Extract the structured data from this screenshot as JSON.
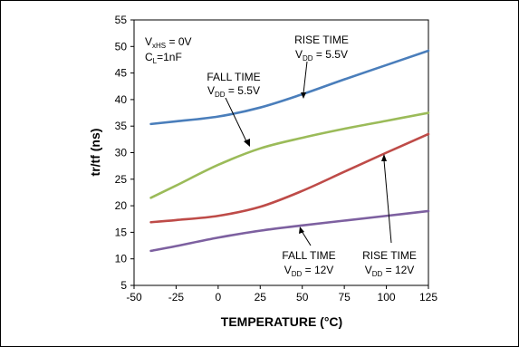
{
  "chart_data": {
    "type": "line",
    "xlabel": "TEMPERATURE (°C)",
    "ylabel": "tr/tf (ns)",
    "xlim": [
      -50,
      125
    ],
    "ylim": [
      5,
      55
    ],
    "xticks": [
      -50,
      -25,
      0,
      25,
      50,
      75,
      100,
      125
    ],
    "yticks": [
      5,
      10,
      15,
      20,
      25,
      30,
      35,
      40,
      45,
      50,
      55
    ],
    "grid": false,
    "conditions": {
      "line1_main": "V",
      "line1_sub": "xHS",
      "line1_rest": " = 0V",
      "line2_main": "C",
      "line2_sub": "L",
      "line2_rest": "=1nF"
    },
    "series": [
      {
        "name": "RISE TIME VDD = 5.5V",
        "color": "#4a7ebb",
        "x": [
          -40,
          -25,
          0,
          25,
          50,
          75,
          100,
          125
        ],
        "values": [
          35.4,
          35.9,
          36.8,
          38.5,
          41.0,
          43.8,
          46.5,
          49.2
        ]
      },
      {
        "name": "FALL TIME VDD = 5.5V",
        "color": "#9bbb59",
        "x": [
          -40,
          -25,
          0,
          25,
          50,
          75,
          100,
          125
        ],
        "values": [
          21.5,
          23.8,
          27.7,
          30.8,
          32.8,
          34.5,
          36.0,
          37.5
        ]
      },
      {
        "name": "RISE TIME VDD = 12V",
        "color": "#be4b48",
        "x": [
          -40,
          -25,
          0,
          25,
          50,
          75,
          100,
          125
        ],
        "values": [
          16.9,
          17.3,
          18.1,
          19.8,
          22.8,
          26.4,
          30.0,
          33.5
        ]
      },
      {
        "name": "FALL TIME VDD = 12V",
        "color": "#7d60a0",
        "x": [
          -40,
          -25,
          0,
          25,
          50,
          75,
          100,
          125
        ],
        "values": [
          11.5,
          12.4,
          14.0,
          15.3,
          16.3,
          17.2,
          18.1,
          19.0
        ]
      }
    ],
    "annotations": [
      {
        "line1": "RISE TIME",
        "line2_main": "V",
        "line2_sub": "DD",
        "line2_rest": " = 5.5V",
        "series": 0
      },
      {
        "line1": "FALL TIME",
        "line2_main": "V",
        "line2_sub": "DD",
        "line2_rest": " = 5.5V",
        "series": 1
      },
      {
        "line1": "RISE TIME",
        "line2_main": "V",
        "line2_sub": "DD",
        "line2_rest": " = 12V",
        "series": 2
      },
      {
        "line1": "FALL TIME",
        "line2_main": "V",
        "line2_sub": "DD",
        "line2_rest": " = 12V",
        "series": 3
      }
    ]
  }
}
